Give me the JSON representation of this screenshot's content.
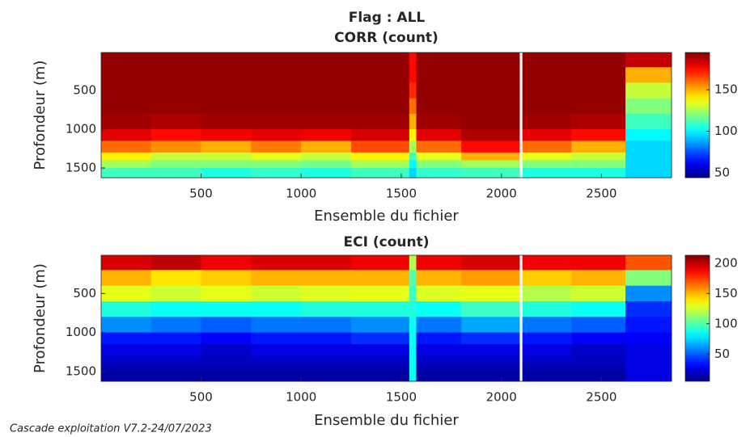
{
  "title": "Flag : ALL",
  "footer": "Cascade exploitation V7.2-24/07/2023",
  "chart_data": [
    {
      "type": "heatmap",
      "title": "CORR (count)",
      "xlabel": "Ensemble du fichier",
      "ylabel": "Profondeur (m)",
      "colormap": "jet",
      "y_reversed": true,
      "xlim": [
        1,
        2850
      ],
      "ylim": [
        10,
        1625
      ],
      "xticks": [
        500,
        1000,
        1500,
        2000,
        2500
      ],
      "yticks": [
        500,
        1000,
        1500
      ],
      "clim": [
        44,
        195
      ],
      "cticks": [
        50,
        100,
        150
      ],
      "x_edges": [
        1,
        250,
        500,
        750,
        1000,
        1250,
        1540,
        1575,
        1800,
        2090,
        2105,
        2350,
        2620,
        2850
      ],
      "y_edges": [
        10,
        200,
        400,
        600,
        800,
        1000,
        1150,
        1300,
        1400,
        1500,
        1625
      ],
      "values": [
        [
          192,
          192,
          192,
          192,
          192,
          192,
          175,
          192,
          192,
          null,
          192,
          192,
          185
        ],
        [
          192,
          192,
          192,
          192,
          192,
          192,
          175,
          192,
          192,
          null,
          192,
          192,
          150
        ],
        [
          192,
          192,
          192,
          192,
          192,
          192,
          170,
          192,
          192,
          null,
          192,
          192,
          130
        ],
        [
          192,
          192,
          192,
          192,
          192,
          192,
          160,
          192,
          192,
          null,
          192,
          192,
          120
        ],
        [
          190,
          188,
          190,
          190,
          190,
          190,
          150,
          190,
          192,
          null,
          190,
          188,
          110
        ],
        [
          180,
          175,
          178,
          180,
          178,
          182,
          140,
          180,
          188,
          null,
          180,
          175,
          100
        ],
        [
          160,
          155,
          150,
          158,
          150,
          165,
          125,
          160,
          175,
          null,
          160,
          150,
          95
        ],
        [
          140,
          130,
          130,
          135,
          130,
          140,
          110,
          135,
          150,
          null,
          135,
          130,
          95
        ],
        [
          125,
          120,
          120,
          120,
          118,
          125,
          100,
          120,
          125,
          null,
          120,
          120,
          95
        ],
        [
          110,
          110,
          105,
          108,
          105,
          110,
          95,
          108,
          110,
          null,
          105,
          105,
          95
        ]
      ]
    },
    {
      "type": "heatmap",
      "title": "ECI (count)",
      "xlabel": "Ensemble du fichier",
      "ylabel": "Profondeur (m)",
      "colormap": "jet",
      "y_reversed": true,
      "xlim": [
        1,
        2850
      ],
      "ylim": [
        10,
        1625
      ],
      "xticks": [
        500,
        1000,
        1500,
        2000,
        2500
      ],
      "yticks": [
        500,
        1000,
        1500
      ],
      "clim": [
        5,
        213
      ],
      "cticks": [
        50,
        100,
        150,
        200
      ],
      "x_edges": [
        1,
        250,
        500,
        750,
        1000,
        1250,
        1540,
        1575,
        1800,
        2090,
        2105,
        2350,
        2620,
        2850
      ],
      "y_edges": [
        10,
        200,
        400,
        600,
        800,
        1000,
        1150,
        1300,
        1400,
        1500,
        1625
      ],
      "values": [
        [
          195,
          200,
          190,
          195,
          195,
          190,
          120,
          190,
          195,
          null,
          190,
          190,
          170
        ],
        [
          150,
          140,
          145,
          150,
          150,
          150,
          100,
          150,
          155,
          null,
          145,
          150,
          110
        ],
        [
          130,
          125,
          130,
          125,
          128,
          130,
          95,
          128,
          130,
          null,
          120,
          125,
          60
        ],
        [
          90,
          85,
          85,
          85,
          90,
          90,
          90,
          85,
          95,
          null,
          90,
          85,
          40
        ],
        [
          60,
          55,
          50,
          55,
          55,
          60,
          85,
          55,
          65,
          null,
          55,
          50,
          35
        ],
        [
          35,
          35,
          30,
          35,
          35,
          40,
          85,
          35,
          40,
          null,
          35,
          30,
          30
        ],
        [
          25,
          25,
          20,
          25,
          25,
          25,
          85,
          25,
          25,
          null,
          25,
          20,
          25
        ],
        [
          20,
          20,
          18,
          20,
          20,
          20,
          85,
          20,
          20,
          null,
          20,
          18,
          25
        ],
        [
          15,
          15,
          15,
          15,
          15,
          15,
          85,
          15,
          15,
          null,
          15,
          15,
          25
        ],
        [
          12,
          12,
          12,
          12,
          12,
          12,
          85,
          12,
          12,
          null,
          12,
          12,
          25
        ]
      ]
    }
  ]
}
